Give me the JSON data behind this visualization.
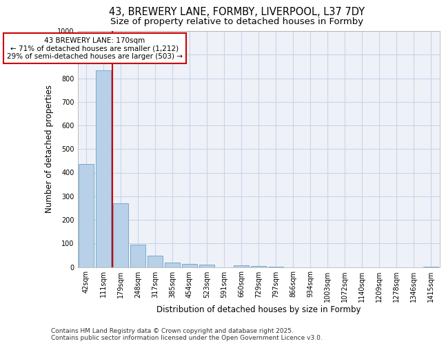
{
  "title_line1": "43, BREWERY LANE, FORMBY, LIVERPOOL, L37 7DY",
  "title_line2": "Size of property relative to detached houses in Formby",
  "xlabel": "Distribution of detached houses by size in Formby",
  "ylabel": "Number of detached properties",
  "categories": [
    "42sqm",
    "111sqm",
    "179sqm",
    "248sqm",
    "317sqm",
    "385sqm",
    "454sqm",
    "523sqm",
    "591sqm",
    "660sqm",
    "729sqm",
    "797sqm",
    "866sqm",
    "934sqm",
    "1003sqm",
    "1072sqm",
    "1140sqm",
    "1209sqm",
    "1278sqm",
    "1346sqm",
    "1415sqm"
  ],
  "values": [
    437,
    833,
    270,
    95,
    47,
    20,
    14,
    9,
    0,
    8,
    3,
    1,
    0,
    0,
    0,
    0,
    0,
    0,
    0,
    0,
    2
  ],
  "bar_color": "#b8d0e8",
  "bar_edge_color": "#6aa0c8",
  "grid_color": "#c8d4e8",
  "background_color": "#eef2f8",
  "property_line_label": "43 BREWERY LANE: 170sqm",
  "annotation_line1": "← 71% of detached houses are smaller (1,212)",
  "annotation_line2": "29% of semi-detached houses are larger (503) →",
  "annotation_box_color": "#ffffff",
  "annotation_box_edge": "#cc0000",
  "vline_color": "#cc0000",
  "ylim": [
    0,
    1000
  ],
  "yticks": [
    0,
    100,
    200,
    300,
    400,
    500,
    600,
    700,
    800,
    900,
    1000
  ],
  "footer_line1": "Contains HM Land Registry data © Crown copyright and database right 2025.",
  "footer_line2": "Contains public sector information licensed under the Open Government Licence v3.0.",
  "title_fontsize": 10.5,
  "subtitle_fontsize": 9.5,
  "axis_label_fontsize": 8.5,
  "tick_fontsize": 7,
  "annotation_fontsize": 7.5,
  "footer_fontsize": 6.5
}
